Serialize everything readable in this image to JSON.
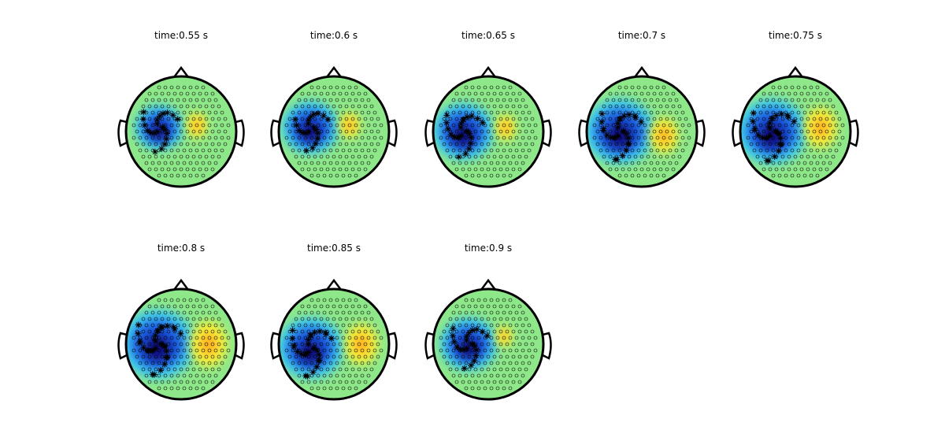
{
  "panels": [
    {
      "title": "time:0.55 s"
    },
    {
      "title": "time:0.6 s"
    },
    {
      "title": "time:0.65 s"
    },
    {
      "title": "time:0.7 s"
    },
    {
      "title": "time:0.75 s"
    },
    {
      "title": "time:0.8 s"
    },
    {
      "title": "time:0.85 s"
    },
    {
      "title": "time:0.9 s"
    }
  ]
}
